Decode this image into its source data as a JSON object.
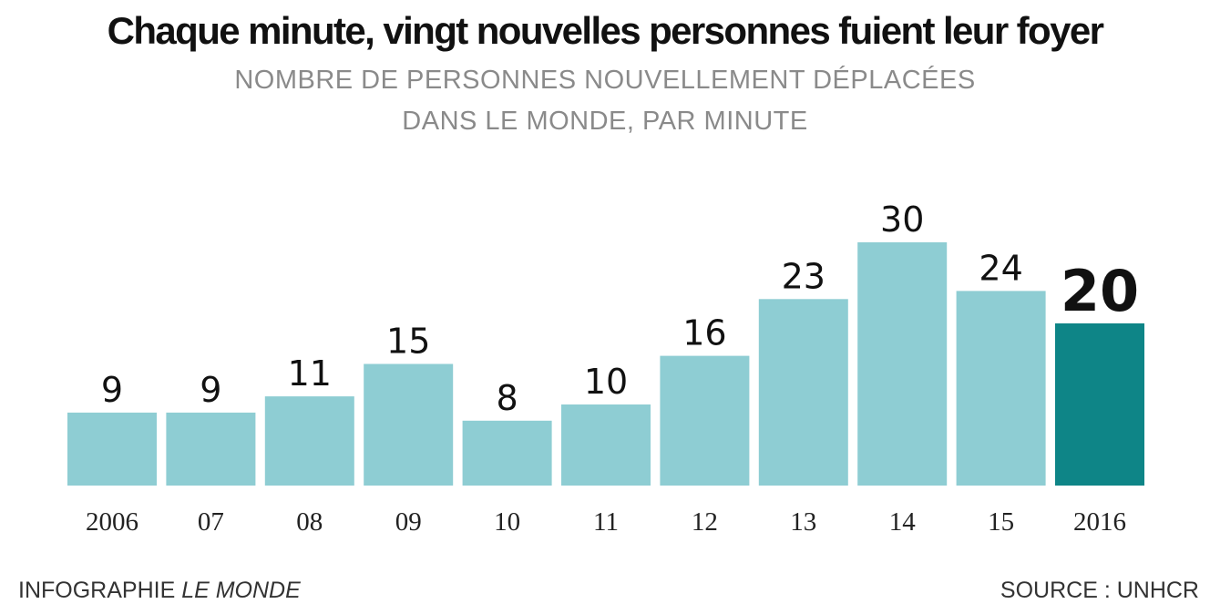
{
  "title": "Chaque minute, vingt nouvelles personnes fuient leur foyer",
  "subtitle_line1": "NOMBRE DE PERSONNES NOUVELLEMENT DÉPLACÉES",
  "subtitle_line2": "DANS LE MONDE, PAR MINUTE",
  "footer": {
    "credit_prefix": "INFOGRAPHIE ",
    "credit_name": "LE MONDE",
    "source": "SOURCE : UNHCR"
  },
  "colors": {
    "bar": "#8ecdd3",
    "highlight": "#0e8587",
    "label": "#111111"
  },
  "chart_data": {
    "type": "bar",
    "categories": [
      "2006",
      "07",
      "08",
      "09",
      "10",
      "11",
      "12",
      "13",
      "14",
      "15",
      "2016"
    ],
    "values": [
      9,
      9,
      11,
      15,
      8,
      10,
      16,
      23,
      30,
      24,
      20
    ],
    "highlight_index": 10,
    "ylim": [
      0,
      30
    ],
    "grid": false,
    "xlabel": "",
    "ylabel": ""
  }
}
